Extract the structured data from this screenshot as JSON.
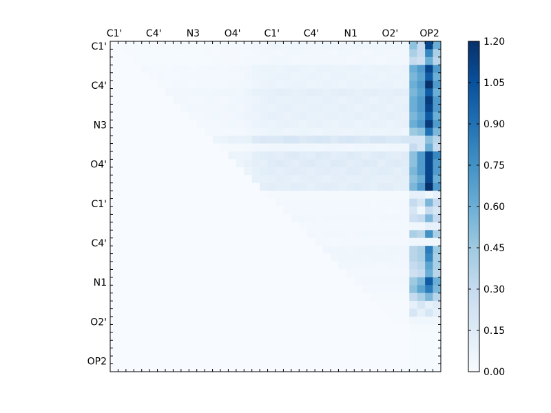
{
  "chart_data": {
    "type": "heatmap",
    "title": "",
    "xlabel": "",
    "ylabel": "",
    "grid": false,
    "size": 42,
    "cmap": "Blues",
    "vmin": 0.0,
    "vmax": 1.2,
    "x_tick_labels": [
      "C1'",
      "C4'",
      "N3",
      "O4'",
      "C1'",
      "C4'",
      "N1",
      "O2'",
      "OP2"
    ],
    "y_tick_labels": [
      "C1'",
      "C4'",
      "N3",
      "O4'",
      "C1'",
      "C4'",
      "N1",
      "O2'",
      "OP2"
    ],
    "colorbar_ticks": [
      "0.00",
      "0.15",
      "0.30",
      "0.45",
      "0.60",
      "0.75",
      "0.90",
      "1.05",
      "1.20"
    ],
    "column_pattern_last4": [
      [
        0.5,
        0.3,
        1.1,
        0.6
      ],
      [
        0.4,
        0.3,
        0.8,
        0.4
      ],
      [
        0.3,
        0.25,
        0.6,
        0.35
      ],
      [
        0.6,
        0.7,
        1.1,
        0.7
      ],
      [
        0.55,
        0.65,
        1.0,
        0.6
      ],
      [
        0.6,
        0.7,
        1.2,
        0.7
      ],
      [
        0.55,
        0.65,
        1.0,
        0.6
      ],
      [
        0.6,
        0.7,
        1.15,
        0.7
      ],
      [
        0.6,
        0.7,
        1.1,
        0.7
      ],
      [
        0.55,
        0.65,
        1.0,
        0.6
      ],
      [
        0.6,
        0.7,
        1.15,
        0.7
      ],
      [
        0.45,
        0.5,
        0.9,
        0.55
      ],
      [
        0.2,
        0.2,
        0.5,
        0.35
      ],
      [
        0.3,
        0.2,
        0.6,
        0.3
      ],
      [
        0.5,
        0.7,
        1.1,
        0.8
      ],
      [
        0.5,
        0.7,
        1.1,
        0.7
      ],
      [
        0.55,
        0.7,
        1.1,
        0.7
      ],
      [
        0.5,
        0.6,
        1.1,
        0.6
      ],
      [
        0.55,
        0.7,
        1.2,
        0.7
      ],
      [
        0.1,
        0.1,
        0.05,
        0.1
      ],
      [
        0.3,
        0.2,
        0.55,
        0.3
      ],
      [
        0.2,
        0.05,
        0.3,
        0.2
      ],
      [
        0.25,
        0.3,
        0.55,
        0.3
      ],
      [
        0.05,
        0.05,
        0.1,
        0.1
      ],
      [
        0.4,
        0.35,
        0.75,
        0.4
      ],
      [
        0.05,
        0.05,
        0.05,
        0.05
      ],
      [
        0.35,
        0.4,
        0.85,
        0.45
      ],
      [
        0.35,
        0.4,
        0.8,
        0.4
      ],
      [
        0.3,
        0.35,
        0.65,
        0.4
      ],
      [
        0.25,
        0.3,
        0.6,
        0.35
      ],
      [
        0.45,
        0.55,
        1.0,
        0.6
      ],
      [
        0.5,
        0.65,
        0.85,
        0.55
      ],
      [
        0.3,
        0.4,
        0.55,
        0.35
      ],
      [
        0.1,
        0.2,
        0.1,
        0.15
      ],
      [
        0.2,
        0.1,
        0.2,
        0.1
      ],
      [
        0.05,
        0.05,
        0.05,
        0.05
      ],
      [
        0.02,
        0.02,
        0.02,
        0.02
      ],
      [
        0.01,
        0.01,
        0.01,
        0.01
      ],
      [
        0.01,
        0.01,
        0.01,
        0.01
      ],
      [
        0.01,
        0.01,
        0.01,
        0.01
      ],
      [
        0.01,
        0.01,
        0.01,
        0.01
      ],
      [
        0.01,
        0.01,
        0.01,
        0.01
      ]
    ],
    "row_interior_level": [
      0.05,
      0.04,
      0.04,
      0.08,
      0.08,
      0.08,
      0.12,
      0.1,
      0.1,
      0.1,
      0.09,
      0.07,
      0.2,
      0.05,
      0.15,
      0.15,
      0.14,
      0.12,
      0.13,
      0.02,
      0.03,
      0.03,
      0.04,
      0.03,
      0.04,
      0.03,
      0.05,
      0.05,
      0.04,
      0.03,
      0.04,
      0.03,
      0.02,
      0.01,
      0.01,
      0.01,
      0.0,
      0.0,
      0.0,
      0.0,
      0.0,
      0.0
    ],
    "col_interior_factor": [
      0.1,
      0.15,
      0.2,
      0.25,
      0.3,
      0.3,
      0.3,
      0.3,
      0.35,
      0.35,
      0.35,
      0.35,
      0.4,
      0.4,
      0.4,
      0.45,
      0.45,
      0.6,
      0.8,
      0.9,
      1.0,
      1.0,
      1.0,
      1.0,
      1.0,
      1.0,
      1.0,
      1.0,
      1.0,
      1.0,
      1.0,
      1.0,
      1.0,
      1.0,
      1.0,
      1.0,
      1.0,
      1.0
    ]
  },
  "colors": {
    "cmap_stops": [
      "#f7fbff",
      "#deebf7",
      "#c6dbef",
      "#9ecae1",
      "#6baed6",
      "#4292c6",
      "#2171b5",
      "#08519c",
      "#08306b"
    ]
  }
}
